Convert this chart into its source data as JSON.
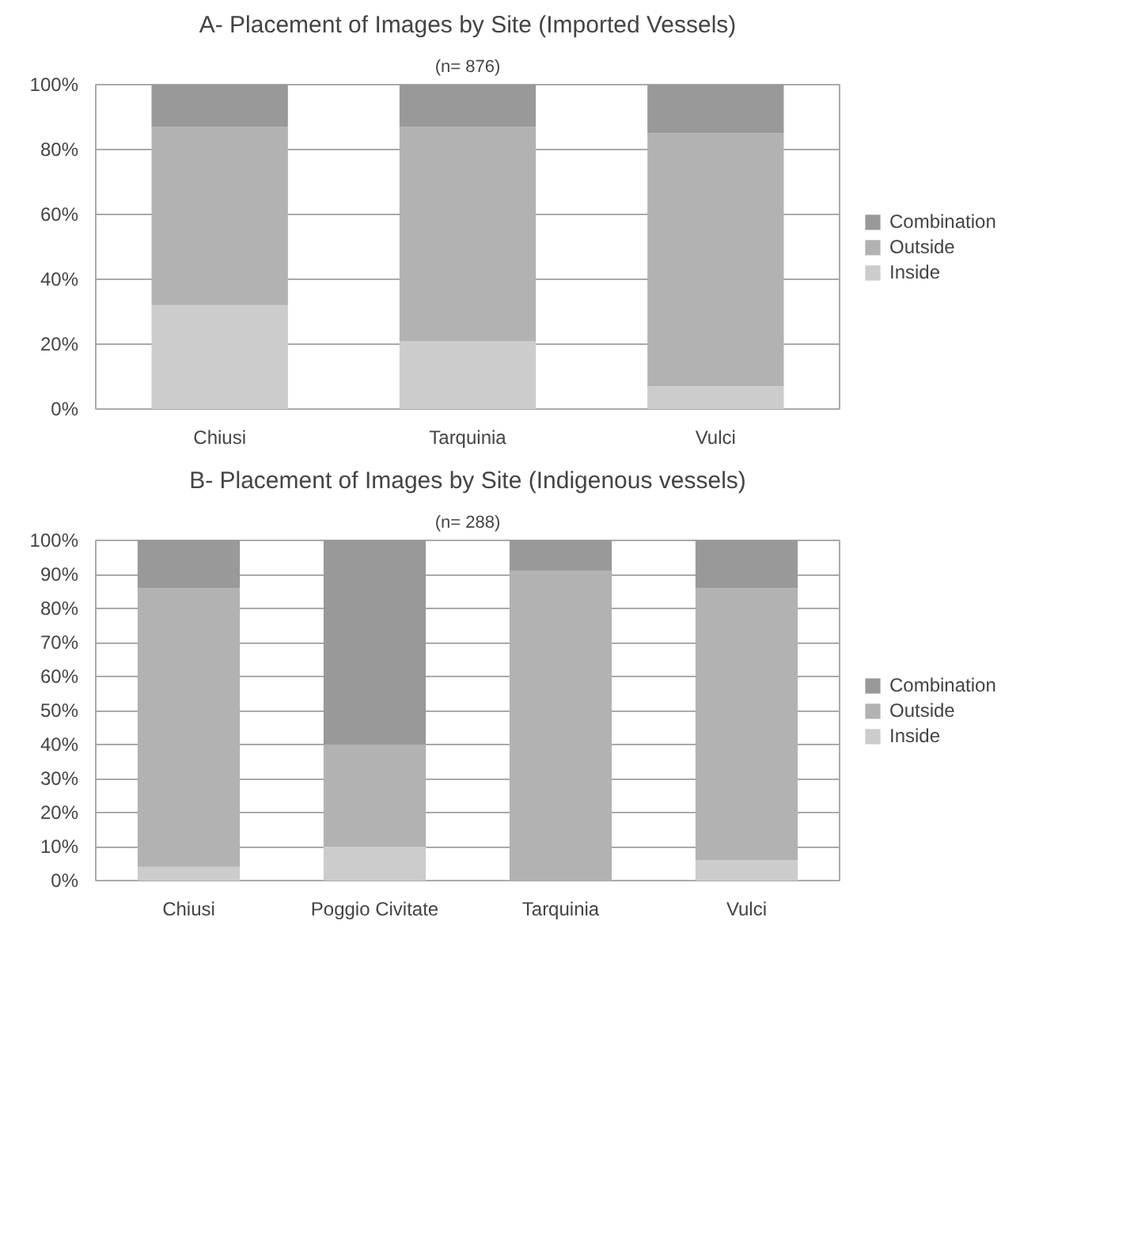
{
  "chart_data": [
    {
      "type": "bar",
      "stacked": true,
      "title": "A- Placement of Images by Site (Imported Vessels)",
      "subtitle": "(n= 876)",
      "categories": [
        "Chiusi",
        "Tarquinia",
        "Vulci"
      ],
      "series": [
        {
          "name": "Inside",
          "color": "#cccccc",
          "values": [
            32,
            21,
            7
          ]
        },
        {
          "name": "Outside",
          "color": "#b2b2b2",
          "values": [
            55,
            66,
            78
          ]
        },
        {
          "name": "Combination",
          "color": "#999999",
          "values": [
            13,
            13,
            15
          ]
        }
      ],
      "ylim": [
        0,
        100
      ],
      "yticks": [
        {
          "value": 0,
          "label": "0%"
        },
        {
          "value": 20,
          "label": "20%"
        },
        {
          "value": 40,
          "label": "40%"
        },
        {
          "value": 60,
          "label": "60%"
        },
        {
          "value": 80,
          "label": "80%"
        },
        {
          "value": 100,
          "label": "100%"
        }
      ],
      "grid": "y",
      "legend": "right"
    },
    {
      "type": "bar",
      "stacked": true,
      "title": "B- Placement of Images by Site (Indigenous vessels)",
      "subtitle": "(n= 288)",
      "categories": [
        "Chiusi",
        "Poggio Civitate",
        "Tarquinia",
        "Vulci"
      ],
      "series": [
        {
          "name": "Inside",
          "color": "#cccccc",
          "values": [
            4,
            10,
            0,
            6
          ]
        },
        {
          "name": "Outside",
          "color": "#b2b2b2",
          "values": [
            82,
            30,
            91,
            80
          ]
        },
        {
          "name": "Combination",
          "color": "#999999",
          "values": [
            14,
            60,
            9,
            14
          ]
        }
      ],
      "ylim": [
        0,
        100
      ],
      "yticks": [
        {
          "value": 0,
          "label": "0%"
        },
        {
          "value": 10,
          "label": "10%"
        },
        {
          "value": 20,
          "label": "20%"
        },
        {
          "value": 30,
          "label": "30%"
        },
        {
          "value": 40,
          "label": "40%"
        },
        {
          "value": 50,
          "label": "50%"
        },
        {
          "value": 60,
          "label": "60%"
        },
        {
          "value": 70,
          "label": "70%"
        },
        {
          "value": 80,
          "label": "80%"
        },
        {
          "value": 90,
          "label": "90%"
        },
        {
          "value": 100,
          "label": "100%"
        }
      ],
      "grid": "y",
      "legend": "right"
    }
  ]
}
